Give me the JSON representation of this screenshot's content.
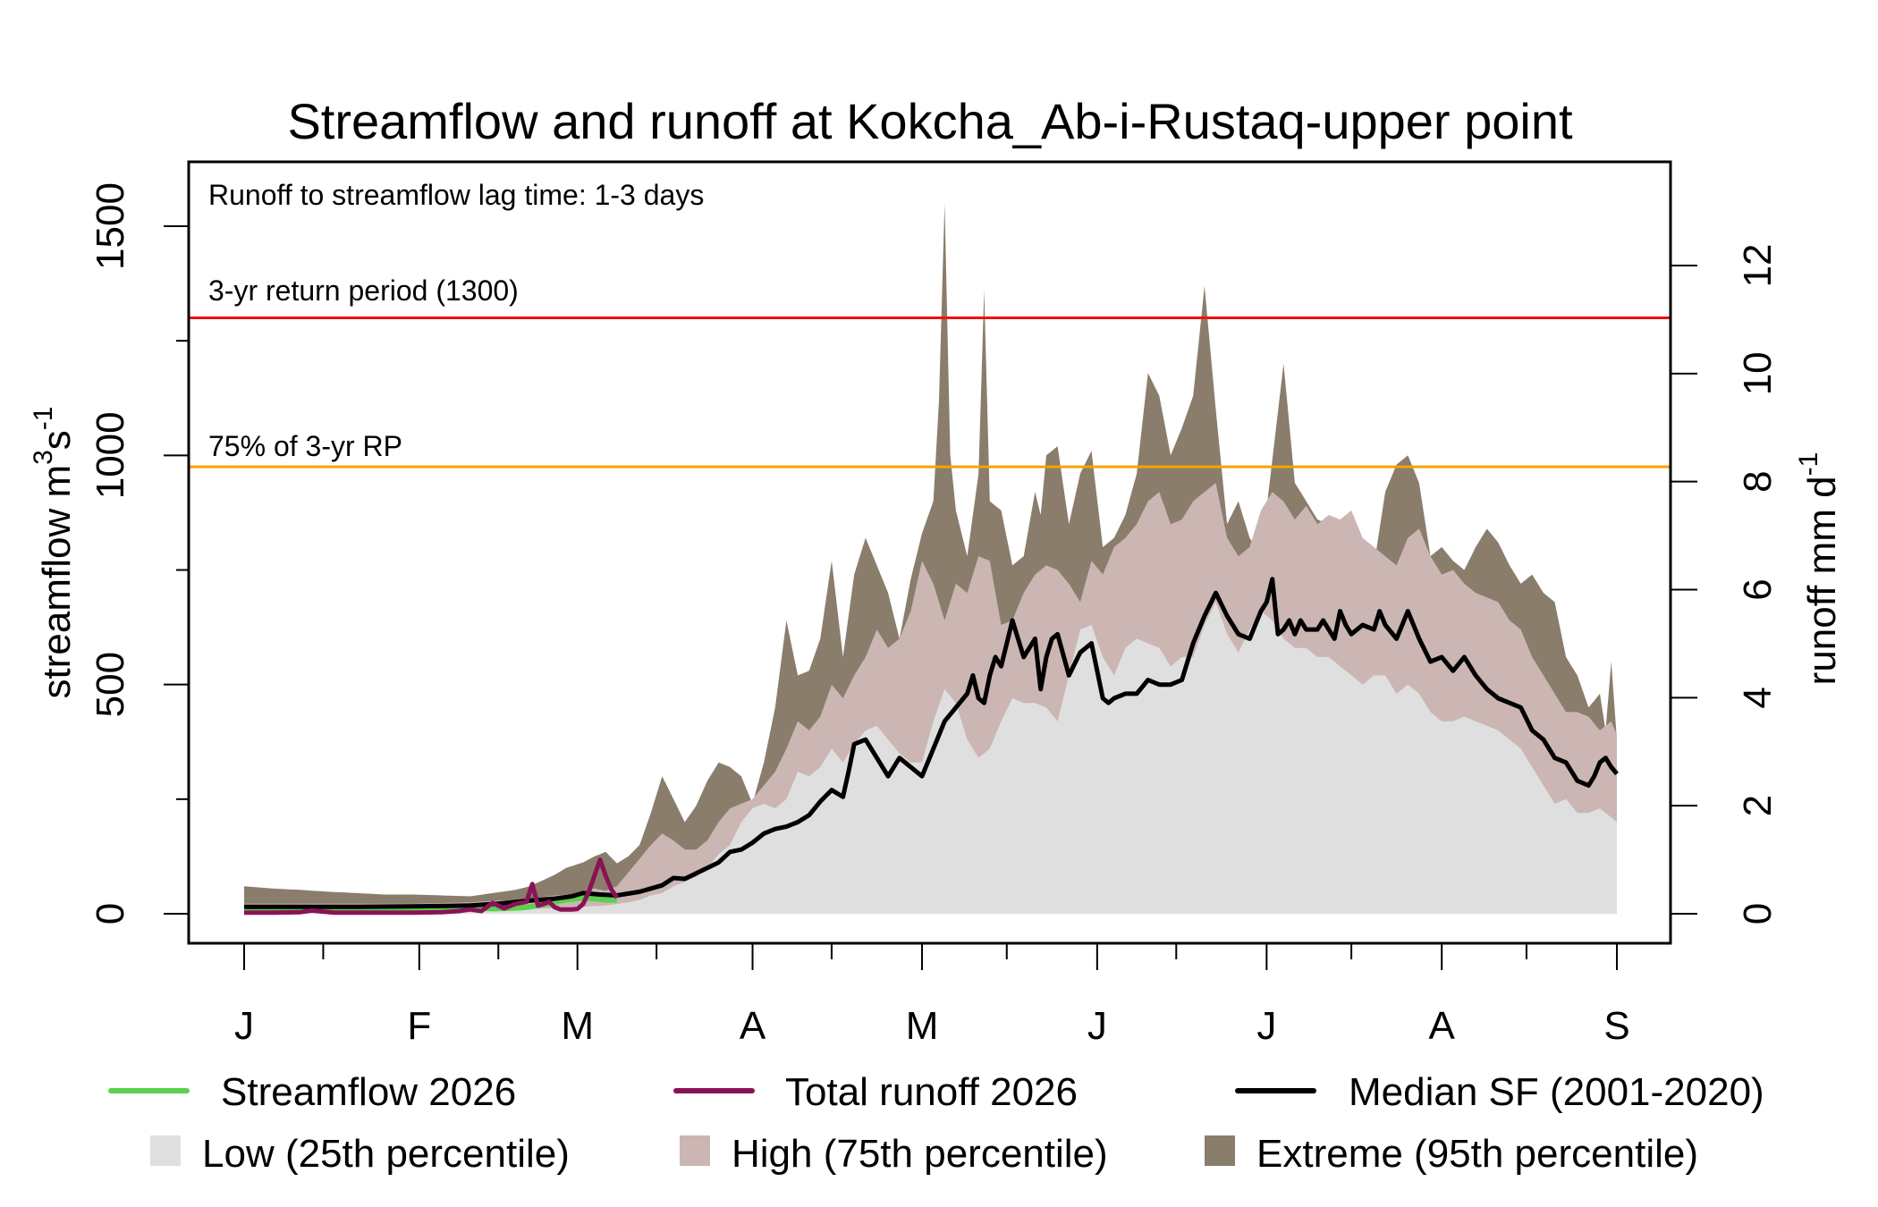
{
  "chart_data": {
    "type": "area",
    "title": "Streamflow and runoff at Kokcha_Ab-i-Rustaq-upper point",
    "xlabel": "",
    "ylabel": "streamflow m3s-1",
    "ylabel_parts": {
      "base": "streamflow m",
      "sup1": "3",
      "mid": "s",
      "sup2": "-1"
    },
    "y2label": "runoff mm d-1",
    "y2label_parts": {
      "base": "runoff mm d",
      "sup": "-1"
    },
    "ylim": [
      0,
      1600
    ],
    "y2lim": [
      0,
      13.4
    ],
    "y_ticks": [
      0,
      250,
      500,
      750,
      1000,
      1250,
      1500
    ],
    "y_tick_labels": [
      "0",
      "",
      "500",
      "",
      "1000",
      "",
      "1500"
    ],
    "y2_ticks": [
      0,
      2,
      4,
      6,
      8,
      10,
      12
    ],
    "y2_tick_labels": [
      "0",
      "2",
      "4",
      "6",
      "8",
      "10",
      "12"
    ],
    "x_unit": "day of year (0 = Jan 1)",
    "xlim": [
      -10,
      253
    ],
    "x_major_ticks": [
      0,
      31,
      59,
      90,
      120,
      151,
      181,
      212,
      243
    ],
    "x_tick_labels": [
      "J",
      "F",
      "M",
      "A",
      "M",
      "J",
      "J",
      "A",
      "S"
    ],
    "x_minor_ticks": [
      14,
      45,
      73,
      104,
      135,
      165,
      196,
      227
    ],
    "grid": false,
    "annotations": {
      "lag": "Runoff to streamflow lag time: 1-3 days",
      "rp3": "3-yr return period (1300)",
      "rp75": "75% of 3-yr RP"
    },
    "thresholds": [
      {
        "name": "3-yr return period",
        "value": 1300,
        "color": "#ee1111"
      },
      {
        "name": "75% of 3-yr RP",
        "value": 975,
        "color": "#f5a300"
      }
    ],
    "colors": {
      "low": "#dfdfdf",
      "high": "#cbb6b4",
      "extreme": "#8a7d6c",
      "streamflow": "#5ccf4e",
      "runoff": "#8a1256",
      "median": "#000000"
    },
    "series": [
      {
        "name": "Extreme (95th percentile)",
        "kind": "band",
        "x": [
          0,
          5,
          10,
          15,
          20,
          25,
          30,
          35,
          40,
          44,
          48,
          50,
          52,
          55,
          57,
          60,
          62,
          64,
          66,
          68,
          70,
          72,
          74,
          76,
          78,
          80,
          82,
          84,
          86,
          88,
          90,
          92,
          94,
          96,
          98,
          100,
          102,
          104,
          106,
          108,
          110,
          112,
          114,
          116,
          118,
          120,
          122,
          123,
          124,
          125,
          126,
          128,
          130,
          131,
          132,
          134,
          136,
          138,
          140,
          141,
          142,
          144,
          146,
          148,
          150,
          152,
          154,
          156,
          158,
          160,
          162,
          164,
          166,
          168,
          170,
          172,
          174,
          176,
          178,
          180,
          182,
          184,
          186,
          188,
          190,
          192,
          194,
          196,
          198,
          200,
          202,
          204,
          206,
          208,
          210,
          212,
          214,
          216,
          218,
          220,
          222,
          224,
          226,
          228,
          230,
          232,
          234,
          236,
          238,
          240,
          241,
          242,
          243
        ],
        "values": [
          60,
          55,
          52,
          48,
          45,
          42,
          42,
          40,
          38,
          45,
          52,
          58,
          68,
          85,
          100,
          112,
          125,
          135,
          110,
          125,
          150,
          220,
          300,
          250,
          200,
          235,
          290,
          330,
          320,
          300,
          240,
          330,
          450,
          640,
          520,
          530,
          600,
          770,
          560,
          740,
          820,
          760,
          700,
          600,
          730,
          830,
          900,
          1120,
          1550,
          1000,
          880,
          780,
          960,
          1360,
          900,
          880,
          760,
          780,
          920,
          870,
          1000,
          1020,
          850,
          960,
          1010,
          800,
          820,
          870,
          960,
          1180,
          1130,
          1000,
          1060,
          1130,
          1370,
          1100,
          850,
          900,
          820,
          780,
          990,
          1200,
          940,
          900,
          860,
          850,
          800,
          820,
          800,
          760,
          920,
          980,
          1000,
          940,
          780,
          800,
          770,
          750,
          800,
          840,
          810,
          760,
          720,
          740,
          700,
          680,
          560,
          520,
          450,
          480,
          400,
          550,
          380
        ],
        "lower_series": "High (75th percentile)"
      },
      {
        "name": "High (75th percentile)",
        "kind": "band",
        "x": [
          0,
          10,
          20,
          30,
          40,
          44,
          48,
          52,
          55,
          58,
          60,
          62,
          64,
          66,
          68,
          70,
          72,
          74,
          76,
          78,
          80,
          82,
          84,
          86,
          88,
          90,
          92,
          94,
          96,
          98,
          100,
          102,
          104,
          106,
          108,
          110,
          112,
          114,
          116,
          118,
          120,
          122,
          124,
          126,
          128,
          130,
          132,
          134,
          136,
          138,
          140,
          142,
          144,
          146,
          148,
          150,
          152,
          154,
          156,
          158,
          160,
          162,
          164,
          166,
          168,
          170,
          172,
          174,
          176,
          178,
          180,
          182,
          184,
          186,
          188,
          190,
          192,
          194,
          196,
          198,
          200,
          202,
          204,
          206,
          208,
          210,
          212,
          214,
          216,
          218,
          220,
          222,
          224,
          226,
          228,
          230,
          232,
          234,
          236,
          238,
          240,
          242,
          243
        ],
        "values": [
          22,
          22,
          22,
          22,
          25,
          28,
          30,
          35,
          40,
          42,
          48,
          55,
          50,
          60,
          90,
          120,
          150,
          175,
          160,
          140,
          140,
          160,
          200,
          230,
          240,
          250,
          280,
          310,
          360,
          420,
          400,
          430,
          500,
          470,
          520,
          560,
          620,
          580,
          600,
          660,
          770,
          720,
          640,
          720,
          700,
          780,
          770,
          630,
          640,
          700,
          740,
          760,
          750,
          720,
          680,
          770,
          740,
          800,
          820,
          850,
          900,
          920,
          850,
          860,
          900,
          920,
          940,
          820,
          780,
          800,
          880,
          920,
          900,
          860,
          890,
          850,
          870,
          860,
          880,
          820,
          800,
          780,
          760,
          820,
          840,
          780,
          740,
          750,
          720,
          700,
          690,
          680,
          640,
          620,
          560,
          520,
          480,
          440,
          440,
          430,
          400,
          420,
          390
        ],
        "lower_series": "Low (25th percentile)"
      },
      {
        "name": "Low (25th percentile)",
        "kind": "band",
        "x": [
          0,
          10,
          20,
          30,
          40,
          50,
          55,
          60,
          64,
          68,
          70,
          72,
          74,
          76,
          78,
          80,
          82,
          84,
          86,
          88,
          90,
          92,
          94,
          96,
          98,
          100,
          102,
          104,
          106,
          108,
          110,
          112,
          114,
          116,
          118,
          120,
          122,
          124,
          126,
          128,
          130,
          132,
          134,
          136,
          138,
          140,
          142,
          144,
          146,
          148,
          150,
          152,
          154,
          156,
          158,
          160,
          162,
          164,
          166,
          168,
          170,
          172,
          174,
          176,
          178,
          180,
          182,
          184,
          186,
          188,
          190,
          192,
          194,
          196,
          198,
          200,
          202,
          204,
          206,
          208,
          210,
          212,
          214,
          216,
          218,
          220,
          222,
          224,
          226,
          228,
          230,
          232,
          234,
          236,
          238,
          240,
          242,
          243
        ],
        "values": [
          8,
          8,
          8,
          8,
          8,
          10,
          12,
          15,
          18,
          25,
          30,
          40,
          45,
          60,
          70,
          80,
          100,
          130,
          150,
          200,
          230,
          240,
          230,
          250,
          310,
          300,
          320,
          360,
          330,
          370,
          400,
          410,
          380,
          350,
          330,
          330,
          420,
          490,
          460,
          380,
          340,
          360,
          420,
          470,
          460,
          460,
          450,
          420,
          520,
          620,
          630,
          560,
          520,
          580,
          600,
          590,
          580,
          540,
          560,
          560,
          630,
          680,
          610,
          570,
          620,
          660,
          640,
          600,
          580,
          580,
          560,
          560,
          540,
          520,
          500,
          520,
          520,
          480,
          500,
          480,
          440,
          420,
          420,
          430,
          420,
          410,
          400,
          380,
          360,
          320,
          280,
          240,
          250,
          220,
          220,
          230,
          210,
          200
        ],
        "lower_series": "zero"
      },
      {
        "name": "Median SF (2001-2020)",
        "kind": "line",
        "x": [
          0,
          10,
          20,
          30,
          40,
          45,
          50,
          55,
          58,
          60,
          63,
          66,
          70,
          72,
          74,
          76,
          78,
          80,
          82,
          84,
          86,
          88,
          90,
          92,
          94,
          96,
          98,
          100,
          102,
          104,
          106,
          107,
          108,
          110,
          112,
          114,
          116,
          118,
          120,
          122,
          124,
          126,
          128,
          129,
          130,
          131,
          132,
          133,
          134,
          136,
          138,
          140,
          141,
          142,
          143,
          144,
          146,
          148,
          150,
          152,
          153,
          154,
          156,
          158,
          160,
          162,
          164,
          166,
          168,
          170,
          172,
          174,
          176,
          178,
          180,
          181,
          182,
          183,
          184,
          185,
          186,
          187,
          188,
          190,
          191,
          192,
          193,
          194,
          195,
          196,
          198,
          200,
          201,
          202,
          204,
          206,
          208,
          210,
          212,
          214,
          216,
          218,
          220,
          222,
          224,
          226,
          228,
          230,
          232,
          234,
          236,
          238,
          239,
          240,
          241,
          242,
          243
        ],
        "values": [
          15,
          15,
          15,
          16,
          18,
          22,
          28,
          33,
          38,
          45,
          42,
          40,
          48,
          55,
          62,
          78,
          76,
          88,
          100,
          112,
          135,
          140,
          155,
          175,
          185,
          190,
          200,
          215,
          245,
          270,
          255,
          310,
          370,
          380,
          340,
          300,
          340,
          320,
          300,
          360,
          420,
          450,
          480,
          520,
          470,
          460,
          520,
          560,
          540,
          640,
          560,
          600,
          490,
          560,
          600,
          610,
          520,
          570,
          590,
          470,
          460,
          470,
          480,
          480,
          510,
          500,
          500,
          510,
          590,
          650,
          700,
          650,
          610,
          600,
          660,
          680,
          730,
          610,
          620,
          640,
          610,
          640,
          620,
          620,
          640,
          620,
          600,
          660,
          630,
          610,
          630,
          620,
          660,
          630,
          600,
          660,
          600,
          550,
          560,
          530,
          560,
          520,
          490,
          470,
          460,
          450,
          400,
          380,
          340,
          330,
          290,
          280,
          300,
          330,
          340,
          320,
          305
        ]
      },
      {
        "name": "Streamflow 2026",
        "kind": "line",
        "x": [
          0,
          5,
          10,
          15,
          20,
          25,
          30,
          35,
          40,
          44,
          48,
          50,
          52,
          54,
          56,
          58,
          60,
          62,
          64,
          66
        ],
        "values": [
          10,
          10,
          11,
          11,
          11,
          10,
          10,
          11,
          12,
          11,
          12,
          14,
          18,
          22,
          28,
          32,
          35,
          33,
          30,
          30
        ]
      },
      {
        "name": "Total runoff 2026",
        "kind": "line",
        "axis": "right",
        "x": [
          0,
          5,
          10,
          12,
          14,
          16,
          20,
          25,
          30,
          35,
          38,
          40,
          42,
          44,
          46,
          48,
          50,
          51,
          52,
          53,
          54,
          55,
          56,
          57,
          58,
          59,
          60,
          61,
          62,
          63,
          64,
          65,
          66
        ],
        "values": [
          0.02,
          0.02,
          0.03,
          0.06,
          0.04,
          0.02,
          0.02,
          0.02,
          0.02,
          0.03,
          0.05,
          0.08,
          0.05,
          0.2,
          0.1,
          0.18,
          0.22,
          0.55,
          0.15,
          0.18,
          0.22,
          0.12,
          0.08,
          0.08,
          0.08,
          0.09,
          0.18,
          0.4,
          0.7,
          1.0,
          0.7,
          0.45,
          0.3
        ]
      }
    ],
    "legend": {
      "placement": "bottom",
      "rows": [
        [
          {
            "label": "Streamflow 2026",
            "type": "line",
            "color": "#5ccf4e"
          },
          {
            "label": "Total runoff 2026",
            "type": "line",
            "color": "#8a1256"
          },
          {
            "label": "Median SF (2001-2020)",
            "type": "line",
            "color": "#000000"
          }
        ],
        [
          {
            "label": "Low (25th percentile)",
            "type": "box",
            "color": "#dfdfdf"
          },
          {
            "label": "High (75th percentile)",
            "type": "box",
            "color": "#cbb6b4"
          },
          {
            "label": "Extreme (95th percentile)",
            "type": "box",
            "color": "#8a7d6c"
          }
        ]
      ]
    }
  }
}
